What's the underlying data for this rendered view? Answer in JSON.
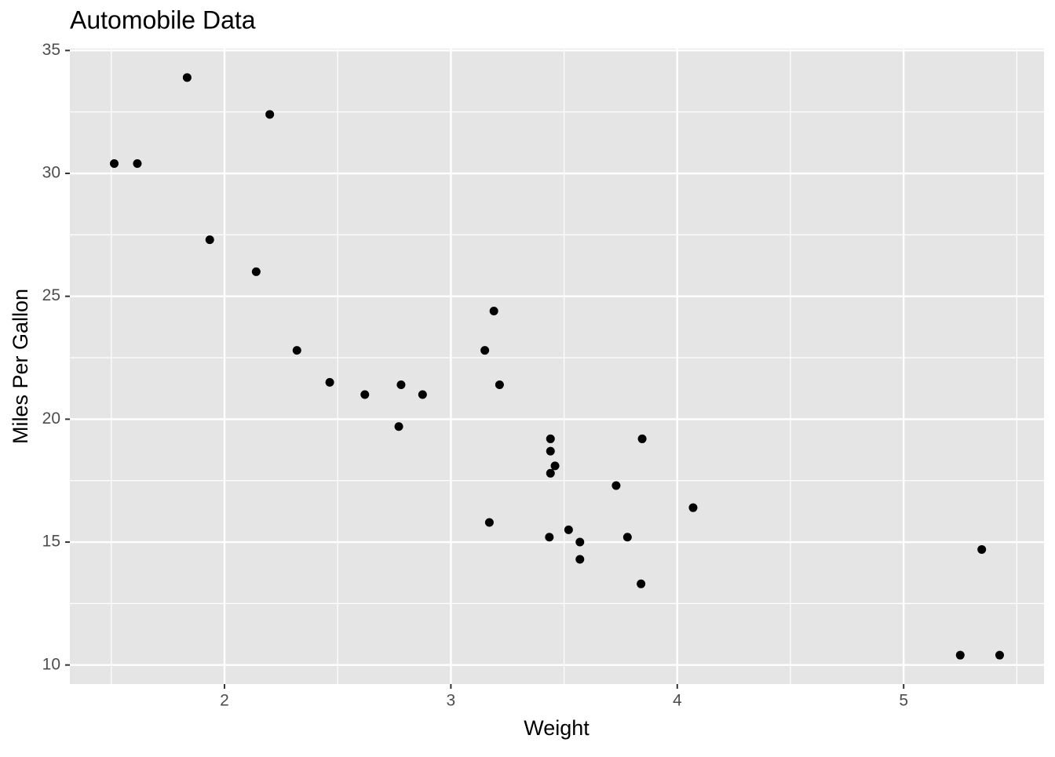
{
  "chart_data": {
    "type": "scatter",
    "title": "Automobile Data",
    "x_label": "Weight",
    "y_label": "Miles Per Gallon",
    "x": [
      2.62,
      2.875,
      2.32,
      3.215,
      3.44,
      3.46,
      3.57,
      3.19,
      3.15,
      3.44,
      3.44,
      4.07,
      3.73,
      3.78,
      5.25,
      5.424,
      5.345,
      2.2,
      1.615,
      1.835,
      2.465,
      3.52,
      3.435,
      3.84,
      3.845,
      1.935,
      2.14,
      1.513,
      3.17,
      2.77,
      3.57,
      2.78
    ],
    "values": [
      21.0,
      21.0,
      22.8,
      21.4,
      18.7,
      18.1,
      14.3,
      24.4,
      22.8,
      19.2,
      17.8,
      16.4,
      17.3,
      15.2,
      10.4,
      10.4,
      14.7,
      32.4,
      30.4,
      33.9,
      21.5,
      15.5,
      15.2,
      13.3,
      19.2,
      27.3,
      26.0,
      30.4,
      15.8,
      19.7,
      15.0,
      21.4
    ],
    "color": "#000000",
    "xlim": [
      1.317,
      5.62
    ],
    "ylim": [
      9.225,
      35.075
    ],
    "xticks": [
      2,
      3,
      4,
      5
    ],
    "yticks": [
      10,
      15,
      20,
      25,
      30,
      35
    ],
    "x_minor_ticks": [
      1.5,
      2.5,
      3.5,
      4.5,
      5.5
    ],
    "y_minor_ticks": [
      12.5,
      17.5,
      22.5,
      27.5,
      32.5
    ],
    "grid": true
  }
}
